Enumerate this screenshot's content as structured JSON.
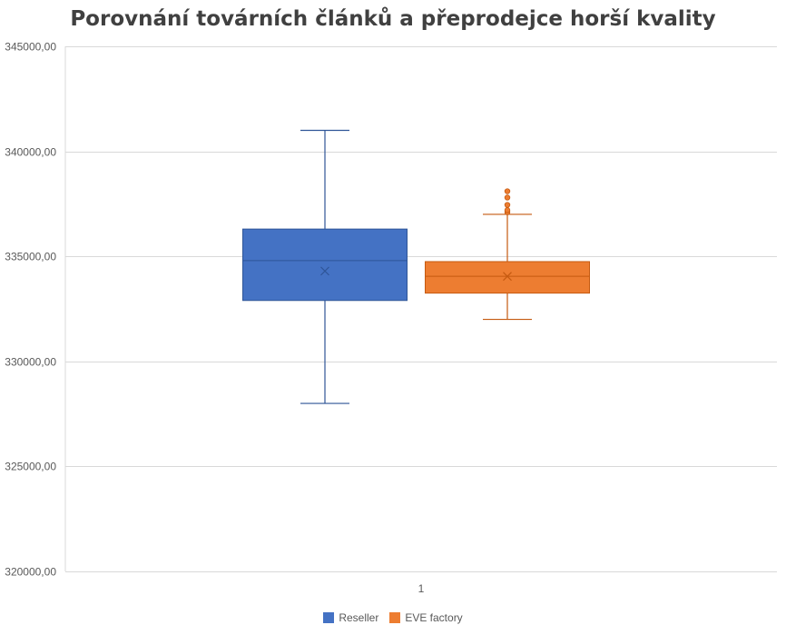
{
  "chart_data": {
    "type": "box",
    "title": "Porovnání továrních článků a přeprodejce horší kvality",
    "categories": [
      "1"
    ],
    "ylim": [
      320000,
      345000
    ],
    "yticks": [
      320000,
      325000,
      330000,
      335000,
      340000,
      345000
    ],
    "ytick_labels": [
      "320000,00",
      "325000,00",
      "330000,00",
      "335000,00",
      "340000,00",
      "345000,00"
    ],
    "grid": true,
    "legend_position": "bottom",
    "series": [
      {
        "name": "Reseller",
        "color": "#4472C4",
        "min": 328000,
        "q1": 332900,
        "median": 334800,
        "q3": 336300,
        "max": 341000,
        "mean": 334300,
        "outliers": []
      },
      {
        "name": "EVE factory",
        "color": "#ED7D31",
        "min": 332000,
        "q1": 333250,
        "median": 334050,
        "q3": 334750,
        "max": 337000,
        "mean": 334050,
        "outliers": [
          337100,
          337200,
          337450,
          337800,
          338100
        ]
      }
    ]
  }
}
